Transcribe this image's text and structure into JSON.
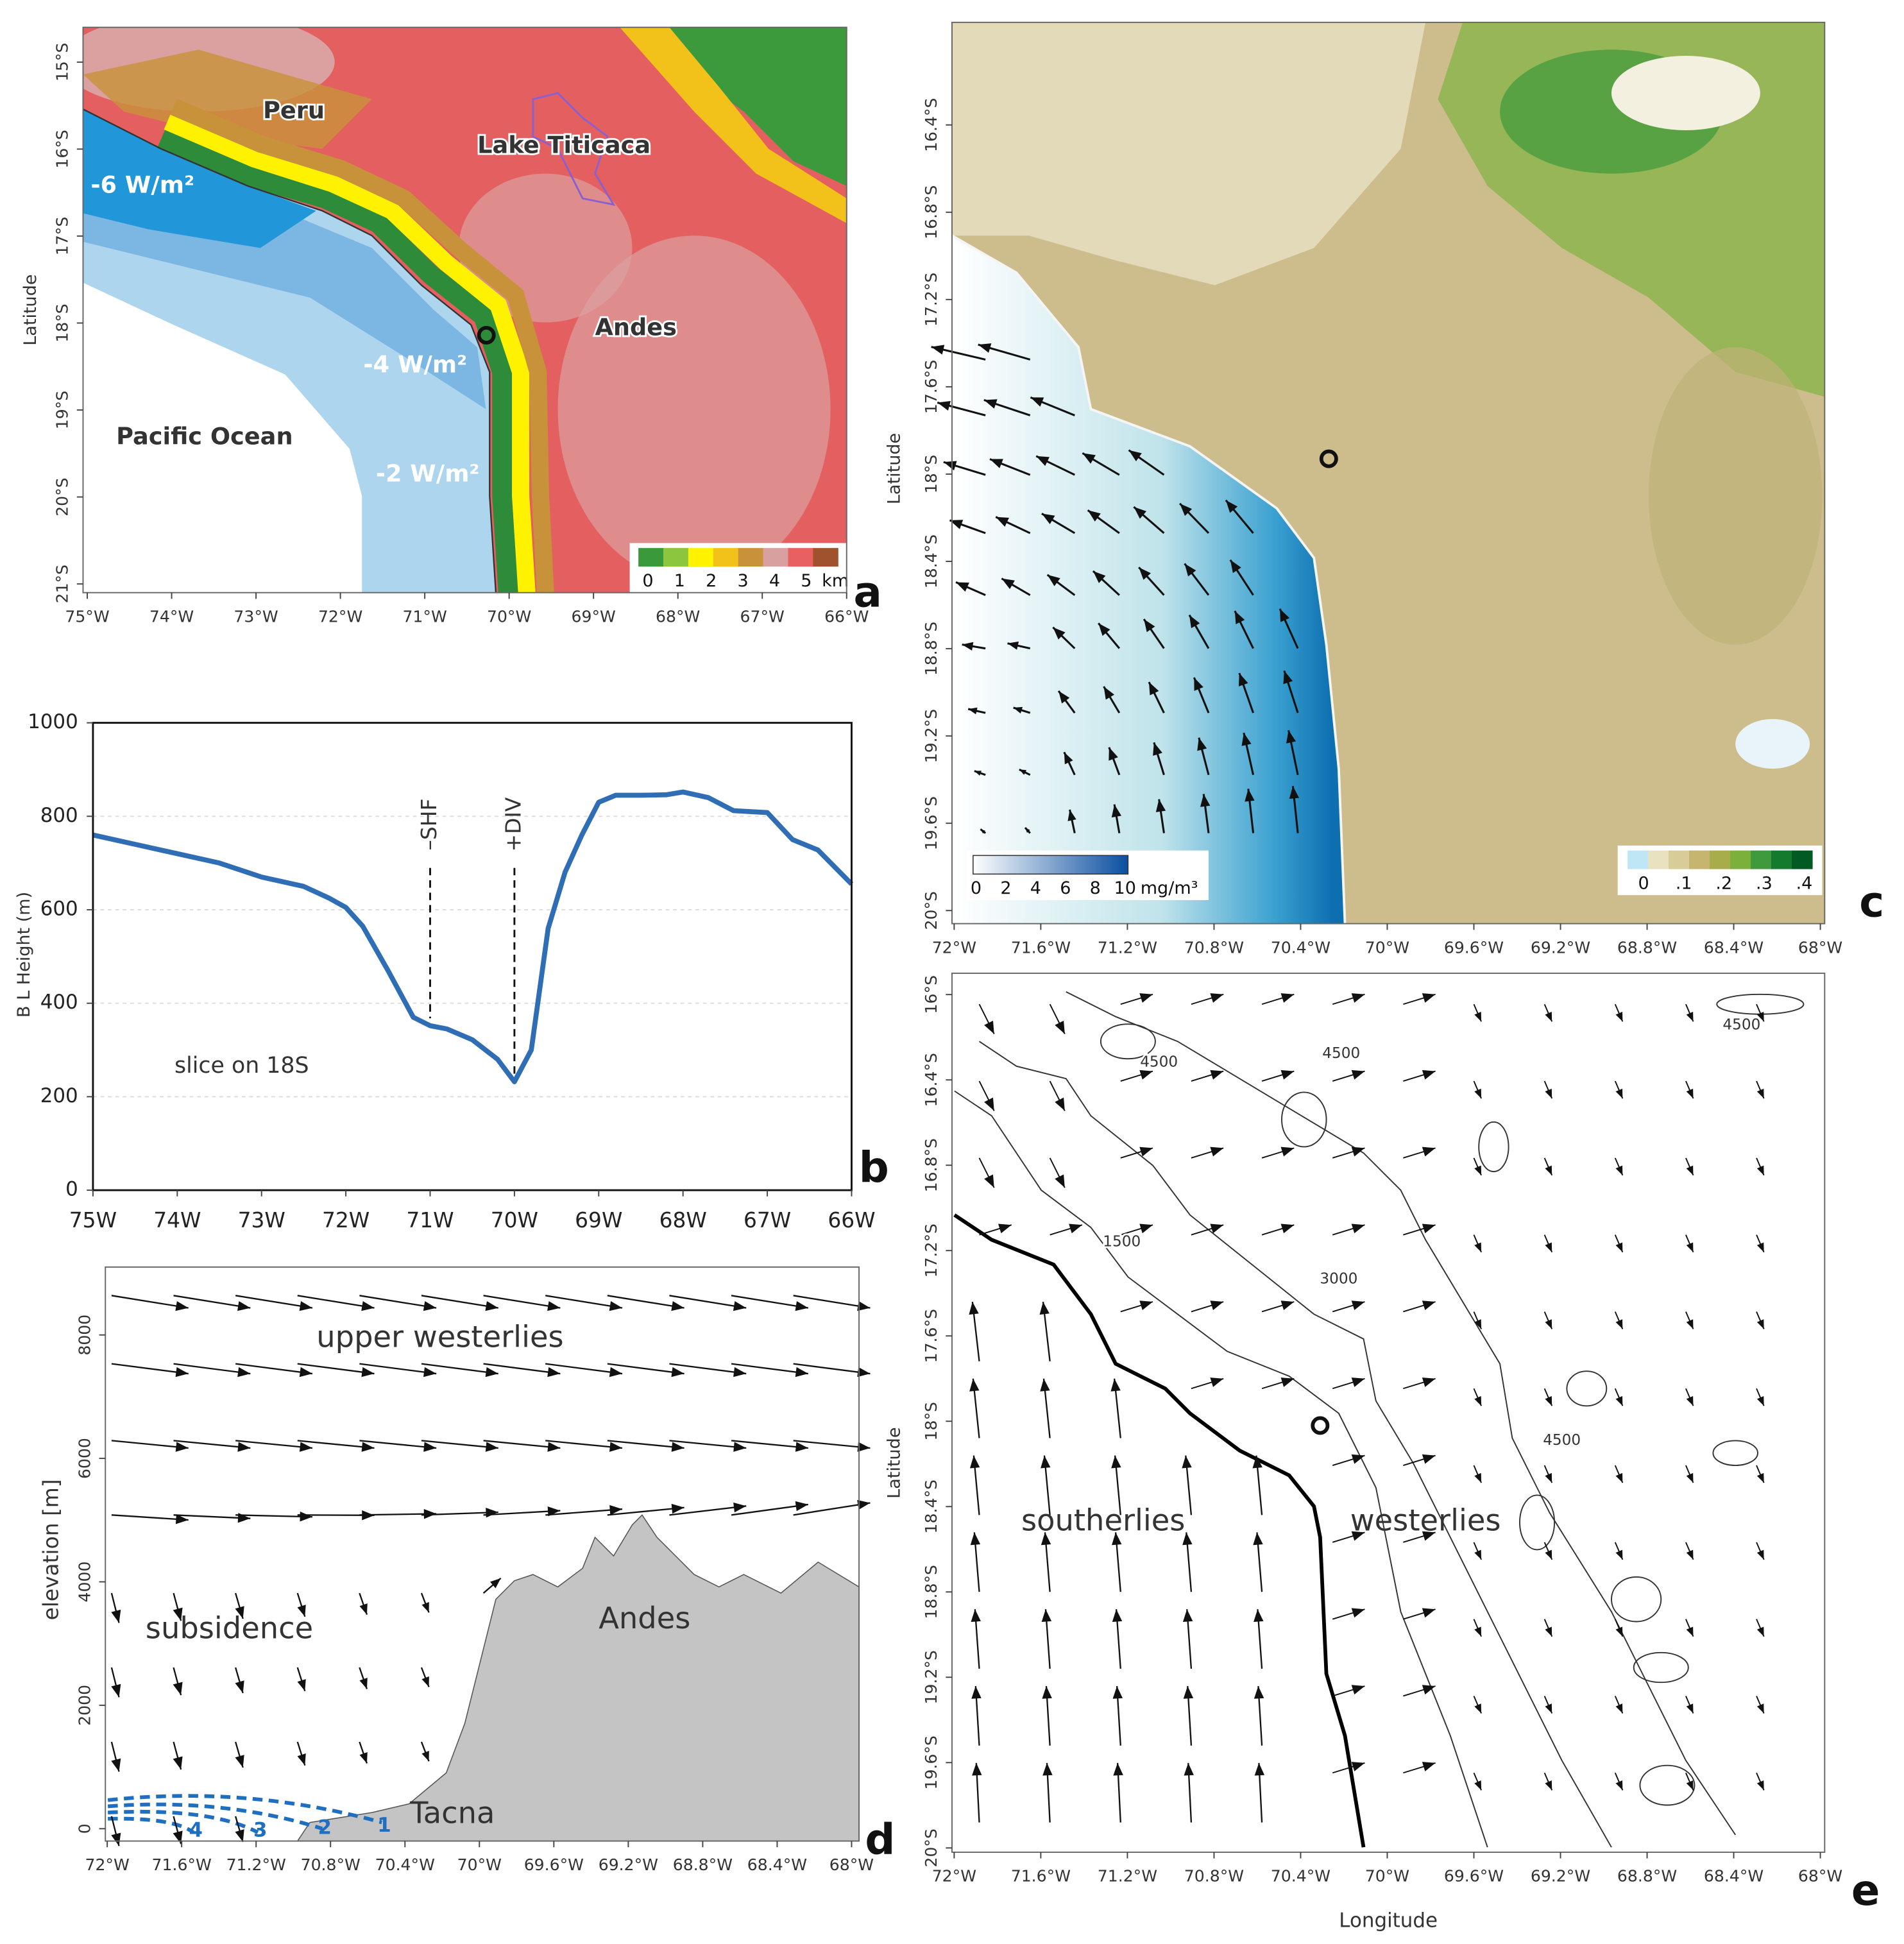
{
  "chart_data": [
    {
      "type": "map",
      "label": "a",
      "ylabel": "Latitude",
      "xlim": [
        -75.05,
        -66
      ],
      "ylim": [
        -21.1,
        -14.6
      ],
      "xticks": [
        {
          "value": -75,
          "label": "75°W"
        },
        {
          "value": -74,
          "label": "74°W"
        },
        {
          "value": -73,
          "label": "73°W"
        },
        {
          "value": -72,
          "label": "72°W"
        },
        {
          "value": -71,
          "label": "71°W"
        },
        {
          "value": -70,
          "label": "70°W"
        },
        {
          "value": -69,
          "label": "69°W"
        },
        {
          "value": -68,
          "label": "68°W"
        },
        {
          "value": -67,
          "label": "67°W"
        },
        {
          "value": -66,
          "label": "66°W"
        }
      ],
      "yticks": [
        {
          "value": -15,
          "label": "15°S"
        },
        {
          "value": -16,
          "label": "16°S"
        },
        {
          "value": -17,
          "label": "17°S"
        },
        {
          "value": -18,
          "label": "18°S"
        },
        {
          "value": -19,
          "label": "19°S"
        },
        {
          "value": -20,
          "label": "20°S"
        },
        {
          "value": -21,
          "label": "21°S"
        }
      ],
      "annotations": [
        "Peru",
        "Lake Titicaca",
        "-6 W/m²",
        "-4 W/m²",
        "-2 W/m²",
        "Andes",
        "Pacific Ocean"
      ],
      "site": {
        "lon": -70.27,
        "lat": -18.14
      },
      "colorbars": [
        {
          "unit": "km",
          "lim": [
            -0.3,
            6
          ],
          "ticks": [
            0,
            1,
            2,
            3,
            4,
            5
          ],
          "colors": [
            "#3a9a3a",
            "#8cc63f",
            "#fff200",
            "#f2c21b",
            "#c8923a",
            "#d9a0a0",
            "#e86060",
            "#a0522d"
          ]
        }
      ]
    },
    {
      "type": "line",
      "label": "b",
      "ylabel": "B L Height (m)",
      "grid": true,
      "xlim": [
        -75,
        -66
      ],
      "ylim": [
        0,
        1000
      ],
      "xticks": [
        {
          "value": -75,
          "label": "75W"
        },
        {
          "value": -74,
          "label": "74W"
        },
        {
          "value": -73,
          "label": "73W"
        },
        {
          "value": -72,
          "label": "72W"
        },
        {
          "value": -71,
          "label": "71W"
        },
        {
          "value": -70,
          "label": "70W"
        },
        {
          "value": -69,
          "label": "69W"
        },
        {
          "value": -68,
          "label": "68W"
        },
        {
          "value": -67,
          "label": "67W"
        },
        {
          "value": -66,
          "label": "66W"
        }
      ],
      "yticks": [
        0,
        200,
        400,
        600,
        800,
        1000
      ],
      "x": [
        -75,
        -74.5,
        -74,
        -73.5,
        -73,
        -72.5,
        -72.2,
        -72,
        -71.8,
        -71.5,
        -71.2,
        -71,
        -70.8,
        -70.5,
        -70.2,
        -70,
        -69.8,
        -69.6,
        -69.4,
        -69.2,
        -69,
        -68.8,
        -68.5,
        -68.2,
        -68,
        -67.7,
        -67.4,
        -67,
        -66.7,
        -66.4,
        -66
      ],
      "values": [
        760,
        740,
        720,
        700,
        670,
        650,
        625,
        605,
        565,
        470,
        370,
        352,
        345,
        322,
        280,
        232,
        300,
        560,
        680,
        760,
        830,
        845,
        845,
        846,
        852,
        840,
        812,
        808,
        750,
        728,
        655
      ],
      "color": "#2f6db5",
      "vlines": [
        {
          "x": -71,
          "label": "–SHF"
        },
        {
          "x": -70,
          "label": "+DIV"
        }
      ],
      "annotations": [
        "slice on 18S"
      ]
    },
    {
      "type": "map",
      "label": "c",
      "ylabel": "Latitude",
      "xlim": [
        -72.01,
        -67.98
      ],
      "ylim": [
        -20.06,
        -15.93
      ],
      "xticks": [
        {
          "value": -72,
          "label": "72°W"
        },
        {
          "value": -71.6,
          "label": "71.6°W"
        },
        {
          "value": -71.2,
          "label": "71.2°W"
        },
        {
          "value": -70.8,
          "label": "70.8°W"
        },
        {
          "value": -70.4,
          "label": "70.4°W"
        },
        {
          "value": -70,
          "label": "70°W"
        },
        {
          "value": -69.6,
          "label": "69.6°W"
        },
        {
          "value": -69.2,
          "label": "69.2°W"
        },
        {
          "value": -68.8,
          "label": "68.8°W"
        },
        {
          "value": -68.4,
          "label": "68.4°W"
        },
        {
          "value": -68,
          "label": "68°W"
        }
      ],
      "yticks": [
        {
          "value": -16.4,
          "label": "16.4°S"
        },
        {
          "value": -16.8,
          "label": "16.8°S"
        },
        {
          "value": -17.2,
          "label": "17.2°S"
        },
        {
          "value": -17.6,
          "label": "17.6°S"
        },
        {
          "value": -18,
          "label": "18°S"
        },
        {
          "value": -18.4,
          "label": "18.4°S"
        },
        {
          "value": -18.8,
          "label": "18.8°S"
        },
        {
          "value": -19.2,
          "label": "19.2°S"
        },
        {
          "value": -19.6,
          "label": "19.6°S"
        },
        {
          "value": -20,
          "label": "20°S"
        }
      ],
      "annotations": [],
      "site": {
        "lon": -70.27,
        "lat": -17.93
      },
      "colorbars": [
        {
          "unit": "mg/m³",
          "lim": [
            -0.2,
            10.2
          ],
          "ticks": [
            0,
            2,
            4,
            6,
            8,
            10
          ],
          "colors": [
            "#ffffff",
            "#0a4fa0"
          ]
        },
        {
          "lim": [
            -0.04,
            0.42
          ],
          "ticks": [
            0,
            {
              "value": 0.1,
              "label": ".1"
            },
            {
              "value": 0.2,
              "label": ".2"
            },
            {
              "value": 0.3,
              "label": ".3"
            },
            {
              "value": 0.4,
              "label": ".4"
            }
          ],
          "colors": [
            "#bfe6f5",
            "#e8e2c0",
            "#d8cc98",
            "#c6b56e",
            "#a6ad4a",
            "#7bb03a",
            "#3e9a3c",
            "#137a2e",
            "#005a22"
          ]
        }
      ]
    },
    {
      "type": "section",
      "label": "d",
      "ylabel": "elevation [m]",
      "xlim": [
        -72.01,
        -67.96
      ],
      "ylim": [
        -200,
        9100
      ],
      "xticks": [
        {
          "value": -72,
          "label": "72°W"
        },
        {
          "value": -71.6,
          "label": "71.6°W"
        },
        {
          "value": -71.2,
          "label": "71.2°W"
        },
        {
          "value": -70.8,
          "label": "70.8°W"
        },
        {
          "value": -70.4,
          "label": "70.4°W"
        },
        {
          "value": -70,
          "label": "70°W"
        },
        {
          "value": -69.6,
          "label": "69.6°W"
        },
        {
          "value": -69.2,
          "label": "69.2°W"
        },
        {
          "value": -68.8,
          "label": "68.8°W"
        },
        {
          "value": -68.4,
          "label": "68.4°W"
        },
        {
          "value": -68,
          "label": "68°W"
        }
      ],
      "yticks": [
        0,
        2000,
        4000,
        6000,
        8000
      ],
      "annotations": [
        "upper westerlies",
        "subsidence",
        "Andes",
        "Tacna"
      ],
      "curve_labels": [
        "1",
        "2",
        "3",
        "4"
      ]
    },
    {
      "type": "map",
      "label": "e",
      "ylabel": "Latitude",
      "xlabel": "Longitude",
      "xlim": [
        -72.01,
        -67.98
      ],
      "ylim": [
        -20.02,
        -15.9
      ],
      "xticks": [
        {
          "value": -72,
          "label": "72°W"
        },
        {
          "value": -71.6,
          "label": "71.6°W"
        },
        {
          "value": -71.2,
          "label": "71.2°W"
        },
        {
          "value": -70.8,
          "label": "70.8°W"
        },
        {
          "value": -70.4,
          "label": "70.4°W"
        },
        {
          "value": -70,
          "label": "70°W"
        },
        {
          "value": -69.6,
          "label": "69.6°W"
        },
        {
          "value": -69.2,
          "label": "69.2°W"
        },
        {
          "value": -68.8,
          "label": "68.8°W"
        },
        {
          "value": -68.4,
          "label": "68.4°W"
        },
        {
          "value": -68,
          "label": "68°W"
        }
      ],
      "yticks": [
        {
          "value": -16,
          "label": "16°S"
        },
        {
          "value": -16.4,
          "label": "16.4°S"
        },
        {
          "value": -16.8,
          "label": "16.8°S"
        },
        {
          "value": -17.2,
          "label": "17.2°S"
        },
        {
          "value": -17.6,
          "label": "17.6°S"
        },
        {
          "value": -18,
          "label": "18°S"
        },
        {
          "value": -18.4,
          "label": "18.4°S"
        },
        {
          "value": -18.8,
          "label": "18.8°S"
        },
        {
          "value": -19.2,
          "label": "19.2°S"
        },
        {
          "value": -19.6,
          "label": "19.6°S"
        },
        {
          "value": -20,
          "label": "20°S"
        }
      ],
      "annotations": [
        "southerlies",
        "westerlies"
      ],
      "contour_labels": [
        4500,
        4500,
        4500,
        1500,
        3000,
        4500
      ],
      "site": {
        "lon": -70.31,
        "lat": -18.02
      }
    }
  ]
}
